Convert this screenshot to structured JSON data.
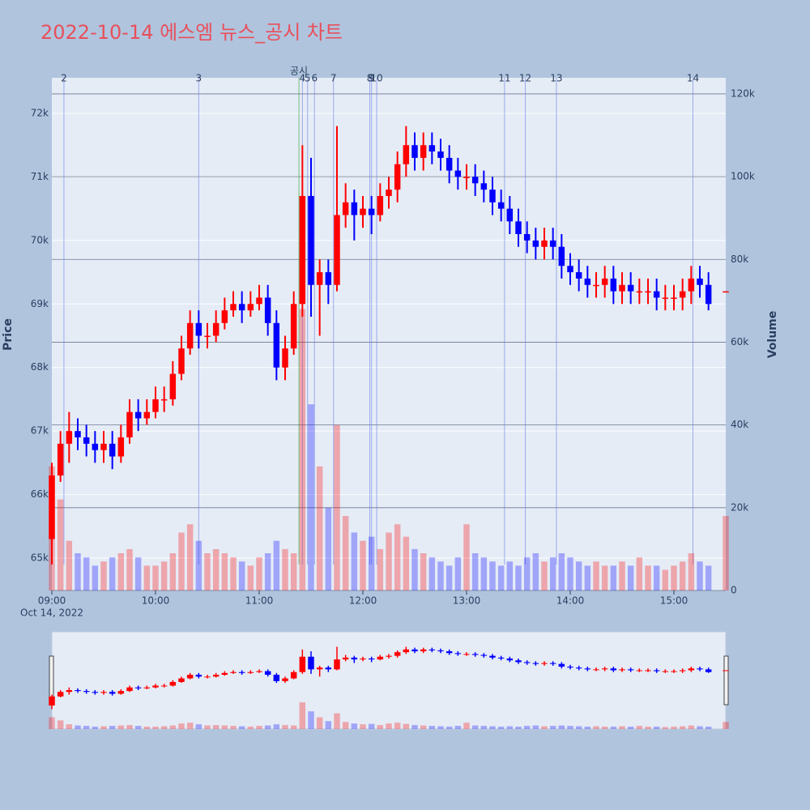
{
  "chart_data": {
    "type": "candlestick",
    "title": "2022-10-14 에스엠 뉴스_공시 차트",
    "y_label": "Price",
    "y2_label": "Volume",
    "x_date_label": "Oct 14, 2022",
    "increasing_color": "#ff0000",
    "decreasing_color": "#0000ff",
    "x": [
      "09:00",
      "09:05",
      "09:10",
      "09:15",
      "09:20",
      "09:25",
      "09:30",
      "09:35",
      "09:40",
      "09:45",
      "09:50",
      "09:55",
      "10:00",
      "10:05",
      "10:10",
      "10:15",
      "10:20",
      "10:25",
      "10:30",
      "10:35",
      "10:40",
      "10:45",
      "10:50",
      "10:55",
      "11:00",
      "11:05",
      "11:10",
      "11:15",
      "11:20",
      "11:25",
      "11:30",
      "11:35",
      "11:40",
      "11:45",
      "11:50",
      "11:55",
      "12:00",
      "12:05",
      "12:10",
      "12:15",
      "12:20",
      "12:25",
      "12:30",
      "12:35",
      "12:40",
      "12:45",
      "12:50",
      "12:55",
      "13:00",
      "13:05",
      "13:10",
      "13:15",
      "13:20",
      "13:25",
      "13:30",
      "13:35",
      "13:40",
      "13:45",
      "13:50",
      "13:55",
      "14:00",
      "14:05",
      "14:10",
      "14:15",
      "14:20",
      "14:25",
      "14:30",
      "14:35",
      "14:40",
      "14:45",
      "14:50",
      "14:55",
      "15:00",
      "15:05",
      "15:10",
      "15:15",
      "15:20",
      "15:30"
    ],
    "open": [
      65300,
      66300,
      66800,
      67000,
      66900,
      66800,
      66700,
      66800,
      66600,
      66900,
      67300,
      67200,
      67300,
      67500,
      67500,
      67900,
      68300,
      68700,
      68500,
      68500,
      68700,
      68900,
      69000,
      68900,
      69000,
      69100,
      68700,
      68000,
      68300,
      69000,
      70700,
      69300,
      69500,
      69300,
      70400,
      70600,
      70400,
      70500,
      70400,
      70700,
      70800,
      71200,
      71500,
      71300,
      71500,
      71400,
      71300,
      71100,
      71000,
      71000,
      70900,
      70800,
      70600,
      70500,
      70300,
      70100,
      70000,
      69900,
      70000,
      69900,
      69600,
      69500,
      69400,
      69300,
      69300,
      69400,
      69200,
      69300,
      69200,
      69200,
      69200,
      69100,
      69100,
      69100,
      69200,
      69400,
      69300,
      69200
    ],
    "high": [
      66500,
      67000,
      67300,
      67200,
      67100,
      67000,
      67000,
      67000,
      67100,
      67500,
      67500,
      67500,
      67700,
      67700,
      68100,
      68500,
      68900,
      68900,
      68700,
      68900,
      69100,
      69200,
      69200,
      69200,
      69300,
      69300,
      68900,
      68500,
      69200,
      71500,
      71300,
      69700,
      69700,
      71800,
      70900,
      70800,
      70700,
      70700,
      70900,
      71000,
      71400,
      71800,
      71700,
      71700,
      71700,
      71600,
      71500,
      71300,
      71200,
      71200,
      71100,
      71000,
      70800,
      70700,
      70500,
      70300,
      70200,
      70200,
      70200,
      70100,
      69800,
      69700,
      69600,
      69500,
      69600,
      69600,
      69500,
      69500,
      69400,
      69400,
      69400,
      69300,
      69300,
      69400,
      69600,
      69600,
      69500,
      69200
    ],
    "low": [
      64900,
      66200,
      66500,
      66700,
      66600,
      66500,
      66500,
      66400,
      66500,
      66800,
      67000,
      67100,
      67200,
      67300,
      67400,
      67800,
      68200,
      68300,
      68300,
      68400,
      68600,
      68800,
      68700,
      68800,
      68900,
      68500,
      67800,
      67800,
      68200,
      68800,
      68800,
      68500,
      69000,
      69200,
      70200,
      70000,
      70200,
      70100,
      70300,
      70500,
      70600,
      71000,
      71100,
      71100,
      71200,
      71100,
      70900,
      70800,
      70800,
      70700,
      70600,
      70400,
      70300,
      70100,
      69900,
      69800,
      69700,
      69700,
      69700,
      69400,
      69300,
      69200,
      69100,
      69100,
      69100,
      69000,
      69000,
      69000,
      69000,
      69000,
      68900,
      68900,
      68900,
      68900,
      69000,
      69100,
      68900,
      69200
    ],
    "close": [
      66300,
      66800,
      67000,
      66900,
      66800,
      66700,
      66800,
      66600,
      66900,
      67300,
      67200,
      67300,
      67500,
      67500,
      67900,
      68300,
      68700,
      68500,
      68500,
      68700,
      68900,
      69000,
      68900,
      69000,
      69100,
      68700,
      68000,
      68300,
      69000,
      70700,
      69300,
      69500,
      69300,
      70400,
      70600,
      70400,
      70500,
      70400,
      70700,
      70800,
      71200,
      71500,
      71300,
      71500,
      71400,
      71300,
      71100,
      71000,
      71000,
      70900,
      70800,
      70600,
      70500,
      70300,
      70100,
      70000,
      69900,
      70000,
      69900,
      69600,
      69500,
      69400,
      69300,
      69300,
      69400,
      69200,
      69300,
      69200,
      69200,
      69200,
      69100,
      69100,
      69100,
      69200,
      69400,
      69300,
      69000,
      69200
    ],
    "volume": [
      30000,
      22000,
      12000,
      9000,
      8000,
      6000,
      7000,
      8000,
      9000,
      10000,
      8000,
      6000,
      6000,
      7000,
      9000,
      14000,
      16000,
      12000,
      9000,
      10000,
      9000,
      8000,
      7000,
      6000,
      8000,
      9000,
      12000,
      10000,
      9000,
      68000,
      45000,
      30000,
      20000,
      40000,
      18000,
      14000,
      12000,
      13000,
      10000,
      14000,
      16000,
      13000,
      10000,
      9000,
      8000,
      7000,
      6000,
      8000,
      16000,
      9000,
      8000,
      7000,
      6000,
      7000,
      6000,
      8000,
      9000,
      7000,
      8000,
      9000,
      8000,
      7000,
      6000,
      7000,
      6000,
      6000,
      7000,
      6000,
      8000,
      6000,
      6000,
      5000,
      6000,
      7000,
      9000,
      7000,
      6000,
      18000
    ],
    "xlim": [
      "09:00",
      "15:30"
    ],
    "xticks": [
      "09:00",
      "10:00",
      "11:00",
      "12:00",
      "13:00",
      "14:00",
      "15:00"
    ],
    "ylim": [
      64490,
      72561
    ],
    "yticks": [
      {
        "value": 65000,
        "label": "65k"
      },
      {
        "value": 66000,
        "label": "66k"
      },
      {
        "value": 67000,
        "label": "67k"
      },
      {
        "value": 68000,
        "label": "68k"
      },
      {
        "value": 69000,
        "label": "69k"
      },
      {
        "value": 70000,
        "label": "70k"
      },
      {
        "value": 71000,
        "label": "71k"
      },
      {
        "value": 72000,
        "label": "72k"
      }
    ],
    "y2lim": [
      0,
      123900
    ],
    "y2ticks": [
      0,
      {
        "value": 20000,
        "label": "20k"
      },
      {
        "value": 40000,
        "label": "40k"
      },
      {
        "value": 60000,
        "label": "60k"
      },
      {
        "value": 80000,
        "label": "80k"
      },
      {
        "value": 100000,
        "label": "100k"
      },
      {
        "value": 120000,
        "label": "120k"
      }
    ],
    "events": [
      {
        "label": "2",
        "time": "09:07"
      },
      {
        "label": "3",
        "time": "10:25"
      },
      {
        "label": "공시",
        "time": "11:23",
        "color": "#2ca02c"
      },
      {
        "label": "4",
        "time": "11:25"
      },
      {
        "label": "5",
        "time": "11:28"
      },
      {
        "label": "6",
        "time": "11:32"
      },
      {
        "label": "7",
        "time": "11:43"
      },
      {
        "label": "8",
        "time": "12:04"
      },
      {
        "label": "9",
        "time": "12:05"
      },
      {
        "label": "10",
        "time": "12:08"
      },
      {
        "label": "11",
        "time": "13:22"
      },
      {
        "label": "12",
        "time": "13:34"
      },
      {
        "label": "13",
        "time": "13:52"
      },
      {
        "label": "14",
        "time": "15:11"
      }
    ],
    "event_color": "#6a7de8",
    "rangeslider": true
  }
}
